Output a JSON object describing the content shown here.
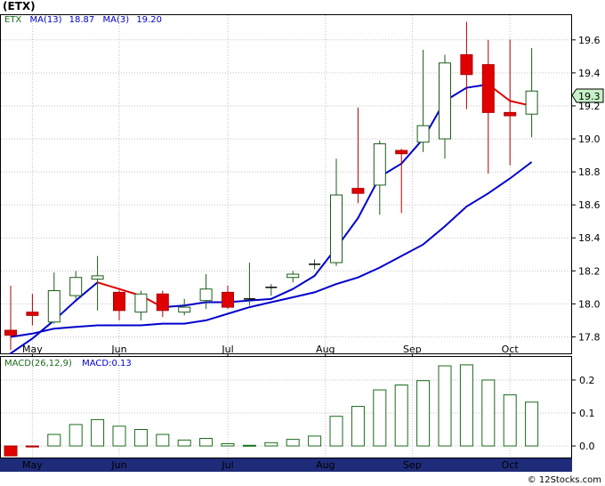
{
  "ticker_title": "(ETX)",
  "legend": {
    "symbol": "ETX",
    "ma13_label": "MA(13)",
    "ma13_value": "18.87",
    "ma3_label": "MA(3)",
    "ma3_value": "19.20",
    "macd_label": "MACD(26,12,9)",
    "macd_value_label": "MACD:0.13"
  },
  "last_price_label": "19.3",
  "credit": "© 12Stocks.com",
  "colors": {
    "up_candle": "#ffffff",
    "up_candle_border": "#1a5c1a",
    "down_candle": "#e00000",
    "ma13": "#0000cc",
    "ma3": "#0000cc",
    "ma3_down": "#e00000",
    "macd_bar": "#1a6b1a",
    "grid": "#c0c0c0",
    "month_band": "#1e2b78",
    "symbol_text": "#1a6b1a",
    "label_text": "#0000cc"
  },
  "chart_data": [
    {
      "type": "candlestick",
      "months": [
        "May",
        "Jun",
        "Jul",
        "Aug",
        "Sep",
        "Oct"
      ],
      "y_ticks": [
        "17.8",
        "18.0",
        "18.2",
        "18.4",
        "18.6",
        "18.8",
        "19.0",
        "19.2",
        "19.4",
        "19.6"
      ],
      "ylim": [
        17.7,
        19.75
      ],
      "grid": true,
      "candles": [
        {
          "o": 17.84,
          "h": 18.11,
          "l": 17.72,
          "c": 17.81
        },
        {
          "o": 17.95,
          "h": 18.06,
          "l": 17.87,
          "c": 17.93
        },
        {
          "o": 17.89,
          "h": 18.19,
          "l": 17.88,
          "c": 18.08
        },
        {
          "o": 18.05,
          "h": 18.2,
          "l": 18.03,
          "c": 18.16
        },
        {
          "o": 18.15,
          "h": 18.29,
          "l": 17.96,
          "c": 18.17
        },
        {
          "o": 18.07,
          "h": 18.08,
          "l": 17.9,
          "c": 17.96
        },
        {
          "o": 17.95,
          "h": 18.08,
          "l": 17.9,
          "c": 18.06
        },
        {
          "o": 18.06,
          "h": 18.08,
          "l": 17.92,
          "c": 17.96
        },
        {
          "o": 17.95,
          "h": 18.03,
          "l": 17.93,
          "c": 17.98
        },
        {
          "o": 18.02,
          "h": 18.18,
          "l": 17.97,
          "c": 18.09
        },
        {
          "o": 18.07,
          "h": 18.11,
          "l": 17.97,
          "c": 17.98
        },
        {
          "o": 18.03,
          "h": 18.25,
          "l": 17.99,
          "c": 18.03
        },
        {
          "o": 18.1,
          "h": 18.12,
          "l": 18.05,
          "c": 18.1
        },
        {
          "o": 18.16,
          "h": 18.2,
          "l": 18.13,
          "c": 18.18
        },
        {
          "o": 18.24,
          "h": 18.27,
          "l": 18.21,
          "c": 18.24
        },
        {
          "o": 18.25,
          "h": 18.88,
          "l": 18.23,
          "c": 18.66
        },
        {
          "o": 18.7,
          "h": 19.19,
          "l": 18.61,
          "c": 18.67
        },
        {
          "o": 18.72,
          "h": 18.99,
          "l": 18.54,
          "c": 18.97
        },
        {
          "o": 18.93,
          "h": 18.94,
          "l": 18.55,
          "c": 18.91
        },
        {
          "o": 18.98,
          "h": 19.54,
          "l": 18.92,
          "c": 19.08
        },
        {
          "o": 19.0,
          "h": 19.51,
          "l": 18.88,
          "c": 19.46
        },
        {
          "o": 19.51,
          "h": 19.71,
          "l": 19.18,
          "c": 19.39
        },
        {
          "o": 19.45,
          "h": 19.6,
          "l": 18.79,
          "c": 19.16
        },
        {
          "o": 19.16,
          "h": 19.6,
          "l": 18.84,
          "c": 19.14
        },
        {
          "o": 19.15,
          "h": 19.55,
          "l": 19.01,
          "c": 19.29
        }
      ],
      "ma13": [
        17.8,
        17.82,
        17.85,
        17.86,
        17.87,
        17.87,
        17.87,
        17.88,
        17.88,
        17.9,
        17.94,
        17.98,
        18.01,
        18.04,
        18.07,
        18.12,
        18.16,
        18.22,
        18.29,
        18.36,
        18.47,
        18.59,
        18.67,
        18.76,
        18.86
      ],
      "ma3": [
        17.7,
        17.79,
        17.9,
        18.02,
        18.13,
        18.09,
        18.05,
        17.98,
        17.99,
        18.01,
        18.01,
        18.02,
        18.03,
        18.09,
        18.17,
        18.34,
        18.52,
        18.77,
        18.85,
        19.0,
        19.23,
        19.31,
        19.33,
        19.23,
        19.2
      ]
    },
    {
      "type": "bar",
      "title": "MACD(26,12,9)",
      "y_ticks": [
        "0.0",
        "0.1",
        "0.2"
      ],
      "ylim": [
        -0.035,
        0.27
      ],
      "values": [
        -0.03,
        -0.003,
        0.035,
        0.065,
        0.08,
        0.06,
        0.05,
        0.035,
        0.018,
        0.023,
        0.007,
        0.002,
        0.01,
        0.02,
        0.03,
        0.09,
        0.12,
        0.17,
        0.185,
        0.198,
        0.243,
        0.246,
        0.2,
        0.155,
        0.133
      ]
    }
  ]
}
